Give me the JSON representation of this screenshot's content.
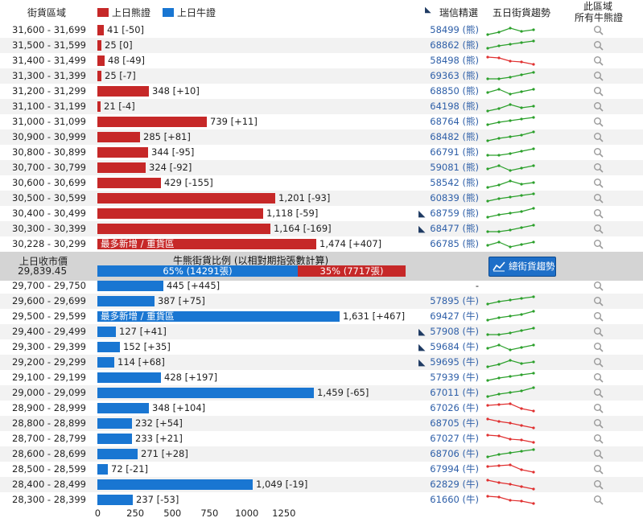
{
  "header": {
    "col_range": "街貨區域",
    "legend_bear": "上日熊證",
    "legend_bull": "上日牛證",
    "col_issuer": "瑞信精選",
    "col_trend": "五日街貨趨勢",
    "col_all_1": "此區域",
    "col_all_2": "所有牛熊證"
  },
  "colors": {
    "bear": "#c62828",
    "bull": "#1976d2",
    "trend_up": "#2ca02c",
    "trend_down": "#e03030",
    "code": "#2e5fa8"
  },
  "bear_rows": [
    {
      "range": "31,600 - 31,699",
      "label": "41 [-50]",
      "value": 41,
      "code": "58499 (熊)",
      "flag": false,
      "trend": "up"
    },
    {
      "range": "31,500 - 31,599",
      "label": "25 [0]",
      "value": 25,
      "code": "68862 (熊)",
      "flag": false,
      "trend": "up"
    },
    {
      "range": "31,400 - 31,499",
      "label": "48 [-49]",
      "value": 48,
      "code": "58498 (熊)",
      "flag": false,
      "trend": "down"
    },
    {
      "range": "31,300 - 31,399",
      "label": "25 [-7]",
      "value": 25,
      "code": "69363 (熊)",
      "flag": false,
      "trend": "up"
    },
    {
      "range": "31,200 - 31,299",
      "label": "348 [+10]",
      "value": 348,
      "code": "68850 (熊)",
      "flag": false,
      "trend": "up"
    },
    {
      "range": "31,100 - 31,199",
      "label": "21 [-4]",
      "value": 21,
      "code": "64198 (熊)",
      "flag": false,
      "trend": "up"
    },
    {
      "range": "31,000 - 31,099",
      "label": "739 [+11]",
      "value": 739,
      "code": "68764 (熊)",
      "flag": false,
      "trend": "up"
    },
    {
      "range": "30,900 - 30,999",
      "label": "285 [+81]",
      "value": 285,
      "code": "68482 (熊)",
      "flag": false,
      "trend": "up"
    },
    {
      "range": "30,800 - 30,899",
      "label": "344 [-95]",
      "value": 344,
      "code": "66791 (熊)",
      "flag": false,
      "trend": "up"
    },
    {
      "range": "30,700 - 30,799",
      "label": "324 [-92]",
      "value": 324,
      "code": "59081 (熊)",
      "flag": false,
      "trend": "up"
    },
    {
      "range": "30,600 - 30,699",
      "label": "429 [-155]",
      "value": 429,
      "code": "58542 (熊)",
      "flag": false,
      "trend": "up"
    },
    {
      "range": "30,500 - 30,599",
      "label": "1,201 [-93]",
      "value": 1201,
      "code": "60839 (熊)",
      "flag": false,
      "trend": "up"
    },
    {
      "range": "30,400 - 30,499",
      "label": "1,118 [-59]",
      "value": 1118,
      "code": "68759 (熊)",
      "flag": true,
      "trend": "up"
    },
    {
      "range": "30,300 - 30,399",
      "label": "1,164 [-169]",
      "value": 1164,
      "code": "68477 (熊)",
      "flag": true,
      "trend": "up"
    },
    {
      "range": "30,228 - 30,299",
      "label": "1,474 [+407]",
      "value": 1474,
      "code": "66785 (熊)",
      "flag": false,
      "trend": "up",
      "inbar": "最多新增 / 重貨區"
    }
  ],
  "middle": {
    "close_label": "上日收市價",
    "close_value": "29,839.45",
    "ratio_title": "牛熊街貨比例 (以相對期指張數計算)",
    "bull_pct_text": "65% (14291張)",
    "bear_pct_text": "35% (7717張)",
    "bull_pct": 65,
    "bear_pct": 35,
    "trend_button": "總街貨趨勢"
  },
  "bull_rows": [
    {
      "range": "29,700 - 29,750",
      "label": "445 [+445]",
      "value": 445,
      "code": "-",
      "flag": false,
      "trend": "none"
    },
    {
      "range": "29,600 - 29,699",
      "label": "387 [+75]",
      "value": 387,
      "code": "57895 (牛)",
      "flag": false,
      "trend": "up"
    },
    {
      "range": "29,500 - 29,599",
      "label": "1,631 [+467]",
      "value": 1631,
      "code": "69427 (牛)",
      "flag": false,
      "trend": "up",
      "inbar": "最多新增 / 重貨區"
    },
    {
      "range": "29,400 - 29,499",
      "label": "127 [+41]",
      "value": 127,
      "code": "57908 (牛)",
      "flag": true,
      "trend": "up"
    },
    {
      "range": "29,300 - 29,399",
      "label": "152 [+35]",
      "value": 152,
      "code": "59684 (牛)",
      "flag": true,
      "trend": "up"
    },
    {
      "range": "29,200 - 29,299",
      "label": "114 [+68]",
      "value": 114,
      "code": "59695 (牛)",
      "flag": true,
      "trend": "up"
    },
    {
      "range": "29,100 - 29,199",
      "label": "428 [+197]",
      "value": 428,
      "code": "57939 (牛)",
      "flag": false,
      "trend": "up"
    },
    {
      "range": "29,000 - 29,099",
      "label": "1,459 [-65]",
      "value": 1459,
      "code": "67011 (牛)",
      "flag": false,
      "trend": "up"
    },
    {
      "range": "28,900 - 28,999",
      "label": "348 [+104]",
      "value": 348,
      "code": "67026 (牛)",
      "flag": false,
      "trend": "down"
    },
    {
      "range": "28,800 - 28,899",
      "label": "232 [+54]",
      "value": 232,
      "code": "68705 (牛)",
      "flag": false,
      "trend": "down"
    },
    {
      "range": "28,700 - 28,799",
      "label": "233 [+21]",
      "value": 233,
      "code": "67027 (牛)",
      "flag": false,
      "trend": "down"
    },
    {
      "range": "28,600 - 28,699",
      "label": "271 [+28]",
      "value": 271,
      "code": "68706 (牛)",
      "flag": false,
      "trend": "up"
    },
    {
      "range": "28,500 - 28,599",
      "label": "72 [-21]",
      "value": 72,
      "code": "67994 (牛)",
      "flag": false,
      "trend": "down"
    },
    {
      "range": "28,400 - 28,499",
      "label": "1,049 [-19]",
      "value": 1049,
      "code": "62829 (牛)",
      "flag": false,
      "trend": "down"
    },
    {
      "range": "28,300 - 28,399",
      "label": "237 [-53]",
      "value": 237,
      "code": "61660 (牛)",
      "flag": false,
      "trend": "down"
    }
  ],
  "axis_ticks": [
    "0",
    "250",
    "500",
    "750",
    "1000",
    "1250"
  ],
  "axis_values": [
    0,
    250,
    500,
    750,
    1000,
    1250
  ]
}
